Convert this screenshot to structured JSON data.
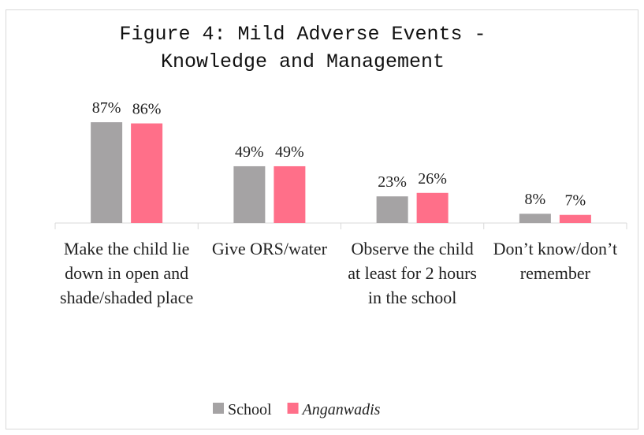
{
  "chart_data": {
    "type": "bar",
    "title": "Figure 4: Mild Adverse Events - Knowledge and Management",
    "categories": [
      "Make the child lie down in open and shade/shaded place",
      "Give ORS/water",
      "Observe the child at least for 2 hours in the school",
      "Don’t know/don’t remember"
    ],
    "series": [
      {
        "name": "School",
        "color": "#a5a3a4",
        "values": [
          87,
          49,
          23,
          8
        ],
        "value_labels": [
          "87%",
          "49%",
          "23%",
          "8%"
        ]
      },
      {
        "name": "Anganwadis",
        "color": "#ff6f89",
        "values": [
          86,
          49,
          26,
          7
        ],
        "value_labels": [
          "86%",
          "49%",
          "26%",
          "7%"
        ]
      }
    ],
    "legend": "bottom"
  }
}
